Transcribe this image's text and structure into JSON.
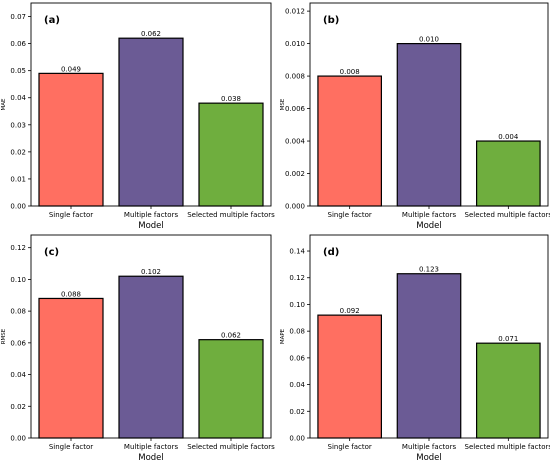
{
  "colors": {
    "single_factor": "#FF6F61",
    "multiple_factors": "#6B5B95",
    "selected_multiple_factors": "#6FAE3E",
    "bar_edge": "#000000"
  },
  "chart_data": [
    {
      "type": "bar",
      "panel_label": "(a)",
      "categories": [
        "Single factor",
        "Multiple factors",
        "Selected multiple factors"
      ],
      "values": [
        0.049,
        0.062,
        0.038
      ],
      "data_labels": [
        "0.049",
        "0.062",
        "0.038"
      ],
      "xlabel": "Model",
      "ylabel": "MAE",
      "ylim": [
        0,
        0.075
      ],
      "yticks": [
        0.0,
        0.01,
        0.02,
        0.03,
        0.04,
        0.05,
        0.06,
        0.07
      ],
      "ytick_labels": [
        "0.00",
        "0.01",
        "0.02",
        "0.03",
        "0.04",
        "0.05",
        "0.06",
        "0.07"
      ],
      "grid": false
    },
    {
      "type": "bar",
      "panel_label": "(b)",
      "categories": [
        "Single factor",
        "Multiple factors",
        "Selected multiple factors"
      ],
      "values": [
        0.008,
        0.01,
        0.004
      ],
      "data_labels": [
        "0.008",
        "0.010",
        "0.004"
      ],
      "xlabel": "Model",
      "ylabel": "MSE",
      "ylim": [
        0,
        0.0125
      ],
      "yticks": [
        0.0,
        0.002,
        0.004,
        0.006,
        0.008,
        0.01,
        0.012
      ],
      "ytick_labels": [
        "0.000",
        "0.002",
        "0.004",
        "0.006",
        "0.008",
        "0.010",
        "0.012"
      ],
      "grid": false
    },
    {
      "type": "bar",
      "panel_label": "(c)",
      "categories": [
        "Single factor",
        "Multiple factors",
        "Selected multiple factors"
      ],
      "values": [
        0.088,
        0.102,
        0.062
      ],
      "data_labels": [
        "0.088",
        "0.102",
        "0.062"
      ],
      "xlabel": "Model",
      "ylabel": "RMSE",
      "ylim": [
        0,
        0.128
      ],
      "yticks": [
        0.0,
        0.02,
        0.04,
        0.06,
        0.08,
        0.1,
        0.12
      ],
      "ytick_labels": [
        "0.00",
        "0.02",
        "0.04",
        "0.06",
        "0.08",
        "0.10",
        "0.12"
      ],
      "grid": false
    },
    {
      "type": "bar",
      "panel_label": "(d)",
      "categories": [
        "Single factor",
        "Multiple factors",
        "Selected multiple factors"
      ],
      "values": [
        0.092,
        0.123,
        0.071
      ],
      "data_labels": [
        "0.092",
        "0.123",
        "0.071"
      ],
      "xlabel": "Model",
      "ylabel": "MAPE",
      "ylim": [
        0,
        0.152
      ],
      "yticks": [
        0.0,
        0.02,
        0.04,
        0.06,
        0.08,
        0.1,
        0.12,
        0.14
      ],
      "ytick_labels": [
        "0.00",
        "0.02",
        "0.04",
        "0.06",
        "0.08",
        "0.10",
        "0.12",
        "0.14"
      ],
      "grid": false
    }
  ]
}
